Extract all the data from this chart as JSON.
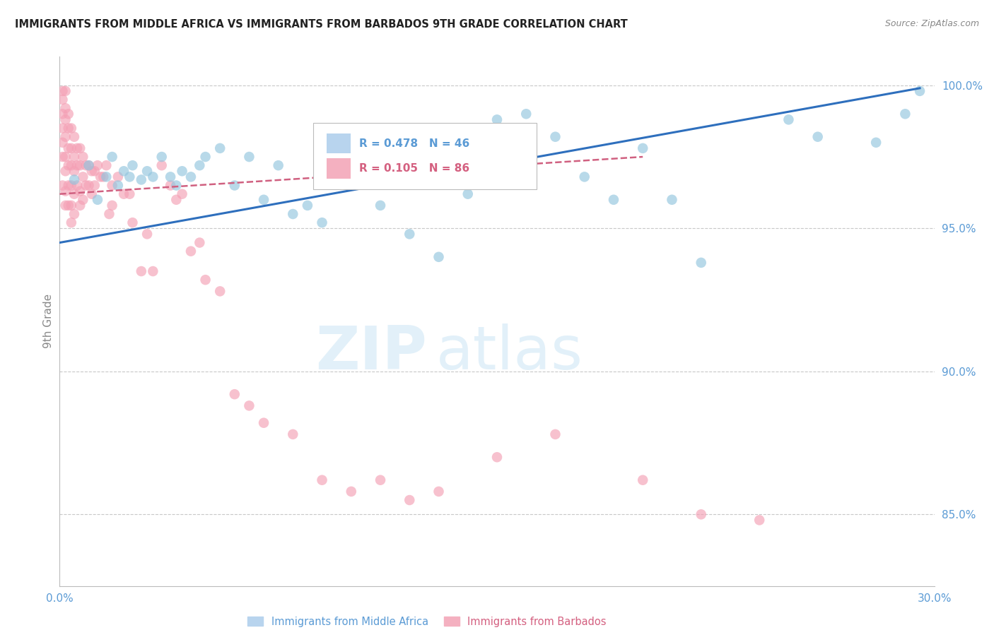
{
  "title": "IMMIGRANTS FROM MIDDLE AFRICA VS IMMIGRANTS FROM BARBADOS 9TH GRADE CORRELATION CHART",
  "source": "Source: ZipAtlas.com",
  "ylabel": "9th Grade",
  "xlim": [
    0.0,
    0.3
  ],
  "ylim": [
    0.825,
    1.01
  ],
  "ytick_vals": [
    0.85,
    0.9,
    0.95,
    1.0
  ],
  "ytick_labels": [
    "85.0%",
    "90.0%",
    "95.0%",
    "100.0%"
  ],
  "xtick_positions": [
    0.0,
    0.3
  ],
  "xtick_labels": [
    "0.0%",
    "30.0%"
  ],
  "blue_scatter_x": [
    0.005,
    0.01,
    0.013,
    0.016,
    0.018,
    0.02,
    0.022,
    0.024,
    0.025,
    0.028,
    0.03,
    0.032,
    0.035,
    0.038,
    0.04,
    0.042,
    0.045,
    0.048,
    0.05,
    0.055,
    0.06,
    0.065,
    0.07,
    0.075,
    0.08,
    0.085,
    0.09,
    0.1,
    0.11,
    0.12,
    0.125,
    0.13,
    0.14,
    0.15,
    0.16,
    0.17,
    0.18,
    0.19,
    0.2,
    0.21,
    0.22,
    0.25,
    0.26,
    0.28,
    0.29,
    0.295
  ],
  "blue_scatter_y": [
    0.967,
    0.972,
    0.96,
    0.968,
    0.975,
    0.965,
    0.97,
    0.968,
    0.972,
    0.967,
    0.97,
    0.968,
    0.975,
    0.968,
    0.965,
    0.97,
    0.968,
    0.972,
    0.975,
    0.978,
    0.965,
    0.975,
    0.96,
    0.972,
    0.955,
    0.958,
    0.952,
    0.968,
    0.958,
    0.948,
    0.968,
    0.94,
    0.962,
    0.988,
    0.99,
    0.982,
    0.968,
    0.96,
    0.978,
    0.96,
    0.938,
    0.988,
    0.982,
    0.98,
    0.99,
    0.998
  ],
  "pink_scatter_x": [
    0.001,
    0.001,
    0.001,
    0.001,
    0.001,
    0.001,
    0.001,
    0.002,
    0.002,
    0.002,
    0.002,
    0.002,
    0.002,
    0.002,
    0.002,
    0.003,
    0.003,
    0.003,
    0.003,
    0.003,
    0.003,
    0.004,
    0.004,
    0.004,
    0.004,
    0.004,
    0.004,
    0.005,
    0.005,
    0.005,
    0.005,
    0.005,
    0.006,
    0.006,
    0.006,
    0.007,
    0.007,
    0.007,
    0.007,
    0.008,
    0.008,
    0.008,
    0.009,
    0.009,
    0.01,
    0.01,
    0.011,
    0.011,
    0.012,
    0.012,
    0.013,
    0.014,
    0.015,
    0.016,
    0.017,
    0.018,
    0.018,
    0.02,
    0.022,
    0.024,
    0.025,
    0.028,
    0.03,
    0.032,
    0.035,
    0.038,
    0.04,
    0.042,
    0.045,
    0.048,
    0.05,
    0.055,
    0.06,
    0.065,
    0.07,
    0.08,
    0.09,
    0.1,
    0.11,
    0.12,
    0.13,
    0.15,
    0.17,
    0.2,
    0.22,
    0.24
  ],
  "pink_scatter_y": [
    0.998,
    0.995,
    0.99,
    0.985,
    0.98,
    0.975,
    0.965,
    0.998,
    0.992,
    0.988,
    0.982,
    0.975,
    0.97,
    0.963,
    0.958,
    0.99,
    0.985,
    0.978,
    0.972,
    0.965,
    0.958,
    0.985,
    0.978,
    0.972,
    0.965,
    0.958,
    0.952,
    0.982,
    0.975,
    0.97,
    0.962,
    0.955,
    0.978,
    0.972,
    0.965,
    0.978,
    0.972,
    0.963,
    0.958,
    0.975,
    0.968,
    0.96,
    0.972,
    0.965,
    0.972,
    0.965,
    0.97,
    0.962,
    0.97,
    0.965,
    0.972,
    0.968,
    0.968,
    0.972,
    0.955,
    0.965,
    0.958,
    0.968,
    0.962,
    0.962,
    0.952,
    0.935,
    0.948,
    0.935,
    0.972,
    0.965,
    0.96,
    0.962,
    0.942,
    0.945,
    0.932,
    0.928,
    0.892,
    0.888,
    0.882,
    0.878,
    0.862,
    0.858,
    0.862,
    0.855,
    0.858,
    0.87,
    0.878,
    0.862,
    0.85,
    0.848
  ],
  "blue_line_x": [
    0.0,
    0.295
  ],
  "blue_line_y": [
    0.945,
    0.999
  ],
  "pink_line_x": [
    0.0,
    0.2
  ],
  "pink_line_y": [
    0.962,
    0.975
  ],
  "blue_color": "#92c5de",
  "pink_color": "#f4a0b5",
  "blue_line_color": "#2e6fbd",
  "pink_line_color": "#d06080",
  "grid_color": "#c8c8c8",
  "background_color": "#ffffff",
  "tick_label_color": "#5b9bd5",
  "ylabel_color": "#888888",
  "legend_text_color_blue": "#5b9bd5",
  "legend_text_color_pink": "#d46080",
  "title_color": "#222222",
  "source_color": "#888888"
}
